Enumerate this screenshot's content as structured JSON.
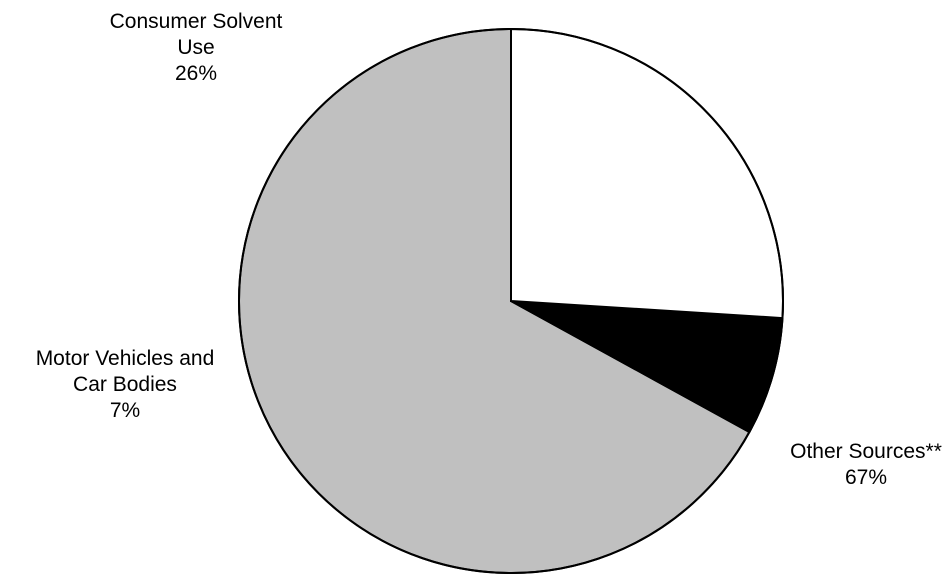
{
  "chart_data": {
    "type": "pie",
    "title": "",
    "start_angle_deg": 0,
    "direction": "counterclockwise",
    "slices": [
      {
        "label_lines": [
          "Other Sources**"
        ],
        "value": 67,
        "value_label": "67%",
        "color": "#c0c0c0"
      },
      {
        "label_lines": [
          "Motor Vehicles and",
          "Car Bodies"
        ],
        "value": 7,
        "value_label": "7%",
        "color": "#000000"
      },
      {
        "label_lines": [
          "Consumer Solvent",
          "Use"
        ],
        "value": 26,
        "value_label": "26%",
        "color": "#ffffff"
      }
    ],
    "outline_color": "#000000"
  }
}
